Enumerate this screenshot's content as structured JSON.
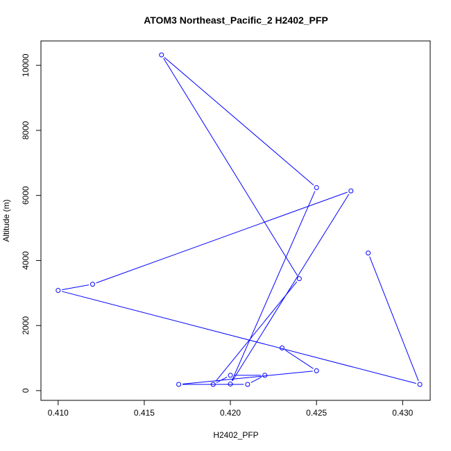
{
  "chart_data": {
    "type": "line",
    "title": "ATOM3 Northeast_Pacific_2 H2402_PFP",
    "xlabel": "H2402_PFP",
    "ylabel": "Altitude (m)",
    "xlim": [
      0.409,
      0.4316
    ],
    "ylim": [
      -300,
      10750
    ],
    "x_ticks": [
      "0.410",
      "0.415",
      "0.420",
      "0.425",
      "0.430"
    ],
    "y_ticks": [
      "0",
      "2000",
      "4000",
      "6000",
      "8000",
      "10000"
    ],
    "grid": false,
    "series": [
      {
        "color": "#0000ff",
        "marker": "open-circle",
        "points": [
          {
            "x": 0.428,
            "y": 4230
          },
          {
            "x": 0.431,
            "y": 190
          },
          {
            "x": 0.41,
            "y": 3080
          },
          {
            "x": 0.412,
            "y": 3270
          },
          {
            "x": 0.427,
            "y": 6140
          },
          {
            "x": 0.42,
            "y": 200
          },
          {
            "x": 0.425,
            "y": 6240
          },
          {
            "x": 0.416,
            "y": 10320
          },
          {
            "x": 0.424,
            "y": 3440
          },
          {
            "x": 0.419,
            "y": 190
          },
          {
            "x": 0.42,
            "y": 470
          },
          {
            "x": 0.422,
            "y": 470
          },
          {
            "x": 0.421,
            "y": 190
          },
          {
            "x": 0.417,
            "y": 190
          },
          {
            "x": 0.425,
            "y": 610
          },
          {
            "x": 0.423,
            "y": 1310
          }
        ]
      }
    ]
  }
}
